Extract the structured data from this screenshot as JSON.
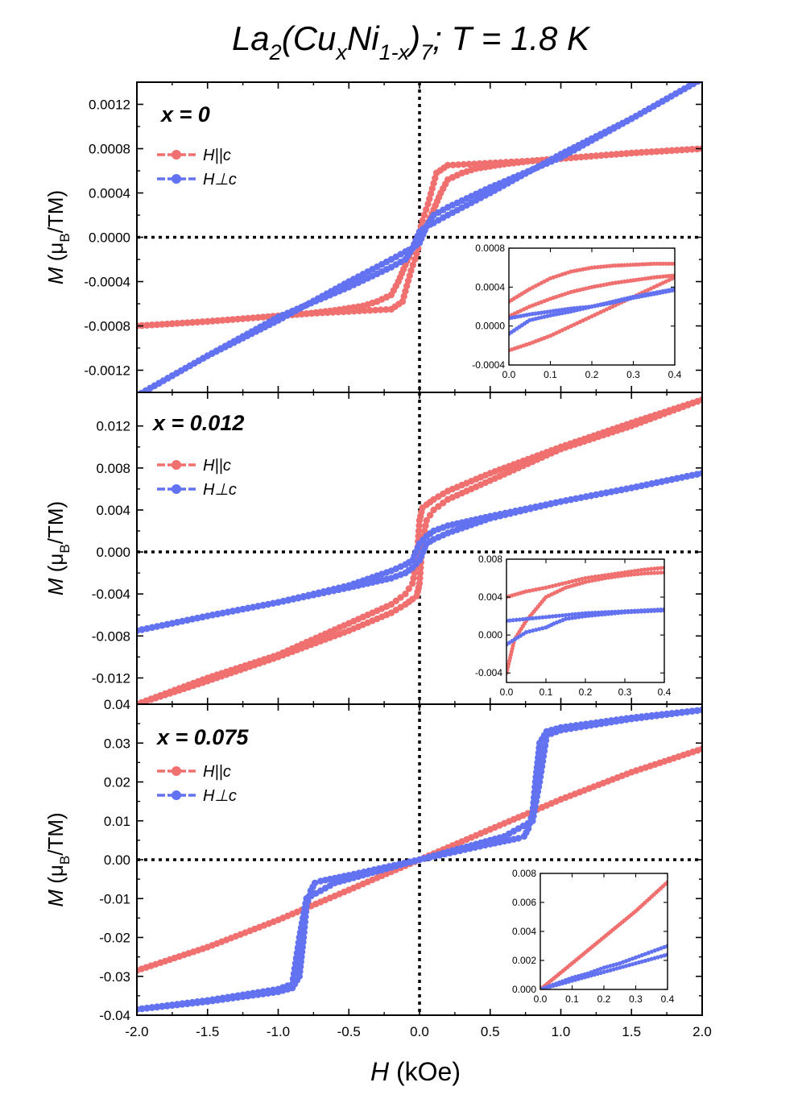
{
  "figure": {
    "title": "La2(CuxNi1-x)7 ; T = 1.8 K",
    "title_parts": {
      "main1": "La",
      "sub1": "2",
      "main2": "(Cu",
      "sub2": "x",
      "main3": "Ni",
      "sub3": "1-x",
      "main4": ")",
      "sub4": "7",
      "main5": "; T = 1.8 K"
    },
    "xlabel": {
      "symbol": "H",
      "unit": " (kOe)"
    },
    "ylabel": {
      "symbol": "M",
      "open": " (μ",
      "sub": "B",
      "close": "/TM)"
    },
    "colors": {
      "H_par_c": "#f07070",
      "H_perp_c": "#6272f0",
      "axes": "#000000"
    }
  },
  "chart_data": [
    {
      "type": "line",
      "panel_label": "x = 0",
      "xlim": [
        -2.0,
        2.0
      ],
      "ylim": [
        -0.0014,
        0.0014
      ],
      "xticks": [
        "-2.0",
        "-1.5",
        "-1.0",
        "-0.5",
        "0.0",
        "0.5",
        "1.0",
        "1.5",
        "2.0"
      ],
      "yticks": [
        "-0.0012",
        "-0.0008",
        "-0.0004",
        "0.0000",
        "0.0004",
        "0.0008",
        "0.0012"
      ],
      "ytick_values": [
        -0.0012,
        -0.0008,
        -0.0004,
        0.0,
        0.0004,
        0.0008,
        0.0012
      ],
      "show_x_ticklabels": false,
      "legend": [
        "H||c",
        "H⊥c"
      ],
      "series": [
        {
          "name": "H||c",
          "color": "#f07070",
          "x": [
            -2.0,
            -1.5,
            -1.0,
            -0.8,
            -0.5,
            -0.2,
            -0.12,
            -0.06,
            -0.02,
            0.0,
            0.05,
            0.1,
            0.15,
            0.2,
            0.3,
            0.4,
            0.6,
            0.8,
            1.0,
            1.5,
            2.0
          ],
          "y": [
            -0.0008,
            -0.00076,
            -0.00071,
            -0.00069,
            -0.00067,
            -0.00065,
            -0.00058,
            -0.0003,
            -0.00015,
            -5e-05,
            0.0001,
            0.00025,
            0.0004,
            0.00052,
            0.00058,
            0.00062,
            0.00066,
            0.00069,
            0.00071,
            0.00076,
            0.0008
          ]
        },
        {
          "name": "H||c",
          "color": "#f07070",
          "x": [
            2.0,
            1.5,
            1.0,
            0.8,
            0.5,
            0.2,
            0.12,
            0.06,
            0.02,
            0.0,
            -0.05,
            -0.1,
            -0.15,
            -0.2,
            -0.3,
            -0.4,
            -0.6,
            -0.8,
            -1.0,
            -1.5,
            -2.0
          ],
          "y": [
            0.0008,
            0.00076,
            0.00071,
            0.00069,
            0.00067,
            0.00065,
            0.00058,
            0.0003,
            0.00015,
            5e-05,
            -0.0001,
            -0.00025,
            -0.0004,
            -0.00052,
            -0.00058,
            -0.00062,
            -0.00066,
            -0.00069,
            -0.00071,
            -0.00076,
            -0.0008
          ]
        },
        {
          "name": "H⊥c",
          "color": "#6272f0",
          "x": [
            -2.0,
            -1.5,
            -1.0,
            -0.5,
            -0.2,
            -0.1,
            -0.05,
            0.0,
            0.05,
            0.1,
            0.2,
            0.5,
            1.0,
            1.5,
            2.0
          ],
          "y": [
            -0.00143,
            -0.00107,
            -0.00072,
            -0.00045,
            -0.00027,
            -0.0002,
            -0.0001,
            5e-05,
            0.0001,
            0.00013,
            0.0002,
            0.0004,
            0.00075,
            0.00107,
            0.00143
          ]
        },
        {
          "name": "H⊥c",
          "color": "#6272f0",
          "x": [
            2.0,
            1.5,
            1.0,
            0.5,
            0.2,
            0.1,
            0.05,
            0.0,
            -0.05,
            -0.1,
            -0.2,
            -0.5,
            -1.0,
            -1.5,
            -2.0
          ],
          "y": [
            0.00143,
            0.00107,
            0.00072,
            0.00045,
            0.00027,
            0.0002,
            0.0001,
            -5e-05,
            -0.0001,
            -0.00013,
            -0.0002,
            -0.0004,
            -0.00075,
            -0.00107,
            -0.00143
          ]
        }
      ],
      "inset": {
        "xlim": [
          0.0,
          0.4
        ],
        "ylim": [
          -0.0004,
          0.0008
        ],
        "xticks": [
          "0.0",
          "0.1",
          "0.2",
          "0.3",
          "0.4"
        ],
        "yticks": [
          "-0.0004",
          "0.0000",
          "0.0004",
          "0.0008"
        ],
        "ytick_values": [
          -0.0004,
          0.0,
          0.0004,
          0.0008
        ],
        "series": [
          {
            "name": "H||c",
            "color": "#f07070",
            "x": [
              0.0,
              0.05,
              0.1,
              0.15,
              0.2,
              0.25,
              0.3,
              0.35,
              0.4
            ],
            "y": [
              0.00025,
              0.00038,
              0.00049,
              0.00056,
              0.0006,
              0.00062,
              0.00063,
              0.00064,
              0.00064
            ]
          },
          {
            "name": "H||c",
            "color": "#f07070",
            "x": [
              0.0,
              0.05,
              0.1,
              0.15,
              0.2,
              0.25,
              0.3,
              0.35,
              0.4
            ],
            "y": [
              -0.00025,
              -0.00018,
              -0.0001,
              0.0,
              0.0001,
              0.0002,
              0.0003,
              0.0004,
              0.0005
            ]
          },
          {
            "name": "H||c",
            "color": "#f07070",
            "x": [
              0.0,
              0.05,
              0.1,
              0.15,
              0.2,
              0.25,
              0.3,
              0.35,
              0.4
            ],
            "y": [
              0.0001,
              0.0002,
              0.00028,
              0.00035,
              0.0004,
              0.00044,
              0.00047,
              0.0005,
              0.00052
            ]
          },
          {
            "name": "H⊥c",
            "color": "#6272f0",
            "x": [
              0.0,
              0.05,
              0.1,
              0.15,
              0.2,
              0.25,
              0.3,
              0.35,
              0.4
            ],
            "y": [
              8e-05,
              0.00012,
              0.00015,
              0.00018,
              0.0002,
              0.00025,
              0.0003,
              0.00034,
              0.00038
            ]
          },
          {
            "name": "H⊥c",
            "color": "#6272f0",
            "x": [
              0.0,
              0.05,
              0.1,
              0.15,
              0.2,
              0.25,
              0.3,
              0.35,
              0.4
            ],
            "y": [
              -8e-05,
              6e-05,
              0.00011,
              0.00015,
              0.0002,
              0.00024,
              0.00029,
              0.00033,
              0.00037
            ]
          }
        ]
      }
    },
    {
      "type": "line",
      "panel_label": "x = 0.012",
      "xlim": [
        -2.0,
        2.0
      ],
      "ylim": [
        -0.0145,
        0.0152
      ],
      "xticks": [
        "-2.0",
        "-1.5",
        "-1.0",
        "-0.5",
        "0.0",
        "0.5",
        "1.0",
        "1.5",
        "2.0"
      ],
      "yticks": [
        "-0.012",
        "-0.008",
        "-0.004",
        "0.000",
        "0.004",
        "0.008",
        "0.012"
      ],
      "ytick_values": [
        -0.012,
        -0.008,
        -0.004,
        0.0,
        0.004,
        0.008,
        0.012
      ],
      "show_x_ticklabels": false,
      "legend": [
        "H||c",
        "H⊥c"
      ],
      "series": [
        {
          "name": "H||c",
          "color": "#f07070",
          "x": [
            -2.0,
            -1.5,
            -1.0,
            -0.5,
            -0.2,
            -0.1,
            -0.05,
            -0.02,
            0.0,
            0.02,
            0.05,
            0.1,
            0.2,
            0.5,
            1.0,
            1.5,
            2.0
          ],
          "y": [
            -0.0145,
            -0.0123,
            -0.01,
            -0.0075,
            -0.0058,
            -0.005,
            -0.0045,
            -0.0042,
            -0.003,
            0.001,
            0.003,
            0.004,
            0.005,
            0.0068,
            0.0098,
            0.012,
            0.0145
          ]
        },
        {
          "name": "H||c",
          "color": "#f07070",
          "x": [
            2.0,
            1.5,
            1.0,
            0.5,
            0.2,
            0.1,
            0.05,
            0.02,
            0.0,
            -0.02,
            -0.05,
            -0.1,
            -0.2,
            -0.5,
            -1.0,
            -1.5,
            -2.0
          ],
          "y": [
            0.0145,
            0.0123,
            0.01,
            0.0075,
            0.0058,
            0.005,
            0.0045,
            0.0042,
            0.003,
            -0.001,
            -0.003,
            -0.004,
            -0.005,
            -0.0068,
            -0.0098,
            -0.012,
            -0.0145
          ]
        },
        {
          "name": "H⊥c",
          "color": "#6272f0",
          "x": [
            -2.0,
            -1.5,
            -1.0,
            -0.5,
            -0.2,
            -0.1,
            -0.05,
            0.0,
            0.05,
            0.1,
            0.2,
            0.5,
            1.0,
            1.5,
            2.0
          ],
          "y": [
            -0.0075,
            -0.0061,
            -0.0048,
            -0.0034,
            -0.0025,
            -0.002,
            -0.0015,
            -0.0008,
            0.0008,
            0.0012,
            0.0018,
            0.0032,
            0.0048,
            0.0061,
            0.0075
          ]
        },
        {
          "name": "H⊥c",
          "color": "#6272f0",
          "x": [
            2.0,
            1.5,
            1.0,
            0.5,
            0.2,
            0.1,
            0.05,
            0.0,
            -0.05,
            -0.1,
            -0.2,
            -0.5,
            -1.0,
            -1.5,
            -2.0
          ],
          "y": [
            0.0075,
            0.0061,
            0.0048,
            0.0034,
            0.0025,
            0.002,
            0.0015,
            0.0008,
            -0.0008,
            -0.0012,
            -0.0018,
            -0.0032,
            -0.0048,
            -0.0061,
            -0.0075
          ]
        }
      ],
      "inset": {
        "xlim": [
          0.0,
          0.4
        ],
        "ylim": [
          -0.005,
          0.008
        ],
        "xticks": [
          "0.0",
          "0.1",
          "0.2",
          "0.3",
          "0.4"
        ],
        "yticks": [
          "-0.004",
          "0.000",
          "0.004",
          "0.008"
        ],
        "ytick_values": [
          -0.004,
          0.0,
          0.004,
          0.008
        ],
        "series": [
          {
            "name": "H||c",
            "color": "#f07070",
            "x": [
              0.0,
              0.05,
              0.1,
              0.15,
              0.2,
              0.25,
              0.3,
              0.35,
              0.4
            ],
            "y": [
              0.004,
              0.0046,
              0.005,
              0.0055,
              0.006,
              0.0063,
              0.0066,
              0.0069,
              0.0071
            ]
          },
          {
            "name": "H||c",
            "color": "#f07070",
            "x": [
              0.0,
              0.02,
              0.05,
              0.1,
              0.15,
              0.2,
              0.25,
              0.3,
              0.35,
              0.4
            ],
            "y": [
              -0.004,
              -0.0005,
              0.0015,
              0.004,
              0.005,
              0.0056,
              0.006,
              0.0063,
              0.0065,
              0.0066
            ]
          },
          {
            "name": "H⊥c",
            "color": "#6272f0",
            "x": [
              0.0,
              0.05,
              0.1,
              0.15,
              0.2,
              0.25,
              0.3,
              0.35,
              0.4
            ],
            "y": [
              0.0015,
              0.0017,
              0.0019,
              0.0021,
              0.0023,
              0.0024,
              0.0025,
              0.0026,
              0.0027
            ]
          },
          {
            "name": "H⊥c",
            "color": "#6272f0",
            "x": [
              0.0,
              0.05,
              0.1,
              0.12,
              0.15,
              0.2,
              0.25,
              0.3,
              0.35,
              0.4
            ],
            "y": [
              -0.001,
              0.0003,
              0.0008,
              0.0012,
              0.0017,
              0.002,
              0.0022,
              0.0024,
              0.0025,
              0.0026
            ]
          }
        ]
      }
    },
    {
      "type": "line",
      "panel_label": "x = 0.075",
      "xlim": [
        -2.0,
        2.0
      ],
      "ylim": [
        -0.04,
        0.04
      ],
      "xticks": [
        "-2.0",
        "-1.5",
        "-1.0",
        "-0.5",
        "0.0",
        "0.5",
        "1.0",
        "1.5",
        "2.0"
      ],
      "yticks": [
        "-0.04",
        "-0.03",
        "-0.02",
        "-0.01",
        "0.00",
        "0.01",
        "0.02",
        "0.03",
        "0.04"
      ],
      "ytick_values": [
        -0.04,
        -0.03,
        -0.02,
        -0.01,
        0.0,
        0.01,
        0.02,
        0.03,
        0.04
      ],
      "show_x_ticklabels": true,
      "legend": [
        "H||c",
        "H⊥c"
      ],
      "series": [
        {
          "name": "H||c",
          "color": "#f07070",
          "x": [
            -2.0,
            -1.5,
            -1.0,
            -0.5,
            0.0,
            0.5,
            1.0,
            1.5,
            2.0
          ],
          "y": [
            -0.0285,
            -0.0225,
            -0.0155,
            -0.0078,
            0.0,
            0.0078,
            0.0155,
            0.0225,
            0.0285
          ]
        },
        {
          "name": "H⊥c",
          "color": "#6272f0",
          "x": [
            -2.0,
            -1.5,
            -1.0,
            -0.9,
            -0.85,
            -0.82,
            -0.8,
            -0.77,
            -0.74,
            -0.7,
            -0.5,
            0.0,
            0.3,
            0.6,
            0.8,
            0.85,
            0.9,
            1.0,
            1.5,
            2.0
          ],
          "y": [
            -0.0385,
            -0.0365,
            -0.034,
            -0.033,
            -0.03,
            -0.02,
            -0.012,
            -0.008,
            -0.006,
            -0.0055,
            -0.004,
            0.0,
            0.003,
            0.006,
            0.01,
            0.02,
            0.032,
            0.0333,
            0.0362,
            0.0385
          ]
        },
        {
          "name": "H⊥c",
          "color": "#6272f0",
          "x": [
            2.0,
            1.5,
            1.0,
            0.9,
            0.85,
            0.82,
            0.8,
            0.77,
            0.74,
            0.7,
            0.5,
            0.0,
            -0.3,
            -0.6,
            -0.8,
            -0.85,
            -0.9,
            -1.0,
            -1.5,
            -2.0
          ],
          "y": [
            0.0385,
            0.0365,
            0.034,
            0.033,
            0.03,
            0.02,
            0.012,
            0.008,
            0.006,
            0.0055,
            0.004,
            0.0,
            -0.003,
            -0.006,
            -0.01,
            -0.02,
            -0.032,
            -0.0333,
            -0.0362,
            -0.0385
          ]
        }
      ],
      "inset": {
        "xlim": [
          0.0,
          0.4
        ],
        "ylim": [
          0.0,
          0.008
        ],
        "xticks": [
          "0.0",
          "0.1",
          "0.2",
          "0.3",
          "0.4"
        ],
        "yticks": [
          "0.000",
          "0.002",
          "0.004",
          "0.006",
          "0.008"
        ],
        "ytick_values": [
          0.0,
          0.002,
          0.004,
          0.006,
          0.008
        ],
        "series": [
          {
            "name": "H||c",
            "color": "#f07070",
            "x": [
              0.0,
              0.05,
              0.1,
              0.15,
              0.2,
              0.25,
              0.3,
              0.35,
              0.4
            ],
            "y": [
              0.0,
              0.0009,
              0.0018,
              0.0027,
              0.0036,
              0.0045,
              0.0054,
              0.0064,
              0.0074
            ]
          },
          {
            "name": "H⊥c",
            "color": "#6272f0",
            "x": [
              0.0,
              0.05,
              0.1,
              0.15,
              0.2,
              0.25,
              0.3,
              0.35,
              0.4
            ],
            "y": [
              0.0,
              0.0004,
              0.0008,
              0.0011,
              0.0015,
              0.0018,
              0.0022,
              0.0026,
              0.003
            ]
          },
          {
            "name": "H⊥c",
            "color": "#6272f0",
            "x": [
              0.0,
              0.05,
              0.1,
              0.15,
              0.2,
              0.25,
              0.3,
              0.35,
              0.4
            ],
            "y": [
              0.0,
              0.0003,
              0.0006,
              0.0009,
              0.0012,
              0.0015,
              0.0018,
              0.0021,
              0.0024
            ]
          }
        ]
      }
    }
  ]
}
